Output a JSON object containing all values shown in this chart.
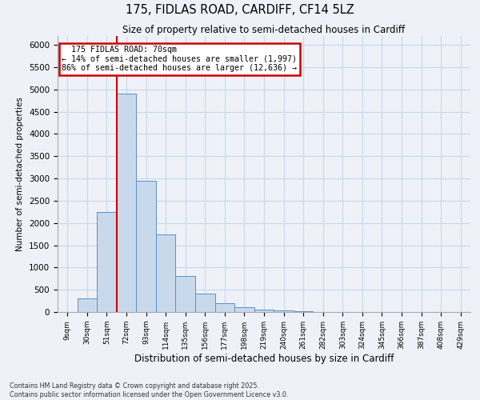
{
  "title1": "175, FIDLAS ROAD, CARDIFF, CF14 5LZ",
  "title2": "Size of property relative to semi-detached houses in Cardiff",
  "xlabel": "Distribution of semi-detached houses by size in Cardiff",
  "ylabel": "Number of semi-detached properties",
  "categories": [
    "9sqm",
    "30sqm",
    "51sqm",
    "72sqm",
    "93sqm",
    "114sqm",
    "135sqm",
    "156sqm",
    "177sqm",
    "198sqm",
    "219sqm",
    "240sqm",
    "261sqm",
    "282sqm",
    "303sqm",
    "324sqm",
    "345sqm",
    "366sqm",
    "387sqm",
    "408sqm",
    "429sqm"
  ],
  "values": [
    0,
    300,
    2250,
    4900,
    2950,
    1750,
    800,
    420,
    200,
    100,
    60,
    30,
    10,
    5,
    2,
    1,
    0,
    0,
    0,
    0,
    0
  ],
  "bar_color": "#c9d9ec",
  "bar_edge_color": "#5b8fc9",
  "vline_color": "#cc0000",
  "annotation_box_color": "#cc0000",
  "vline_x_index": 3,
  "property_label": "175 FIDLAS ROAD: 70sqm",
  "pct_smaller": 14,
  "pct_larger": 86,
  "n_smaller": "1,997",
  "n_larger": "12,636",
  "ylim": [
    0,
    6200
  ],
  "yticks": [
    0,
    500,
    1000,
    1500,
    2000,
    2500,
    3000,
    3500,
    4000,
    4500,
    5000,
    5500,
    6000
  ],
  "grid_color": "#c8d8ea",
  "background_color": "#eef2f8",
  "footer": "Contains HM Land Registry data © Crown copyright and database right 2025.\nContains public sector information licensed under the Open Government Licence v3.0."
}
